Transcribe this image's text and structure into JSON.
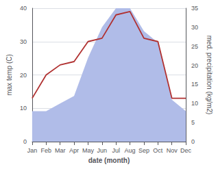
{
  "chart_data": {
    "type": "line",
    "categories": [
      "Jan",
      "Feb",
      "Mar",
      "Apr",
      "May",
      "Jun",
      "Jul",
      "Aug",
      "Sep",
      "Oct",
      "Nov",
      "Dec"
    ],
    "xlabel": "date (month)",
    "ylabel": "max temp (C)",
    "y2label": "med. precipitation (kg/m2)",
    "series": [
      {
        "type": "area",
        "axis": "y2",
        "color": "#b0bce8",
        "values": [
          8,
          8,
          10,
          12,
          22,
          30,
          35,
          35,
          29,
          26,
          11,
          8
        ]
      },
      {
        "type": "line",
        "color": "#b03030",
        "values": [
          13,
          20,
          23,
          24,
          30,
          31,
          38,
          39,
          31,
          30,
          13,
          13
        ]
      }
    ],
    "ylim": [
      0,
      40
    ],
    "yticks": [
      0,
      10,
      20,
      30,
      40
    ],
    "y2lim": [
      0,
      35
    ],
    "y2ticks": [
      0,
      5,
      10,
      15,
      20,
      25,
      30,
      35
    ],
    "grid": true
  }
}
